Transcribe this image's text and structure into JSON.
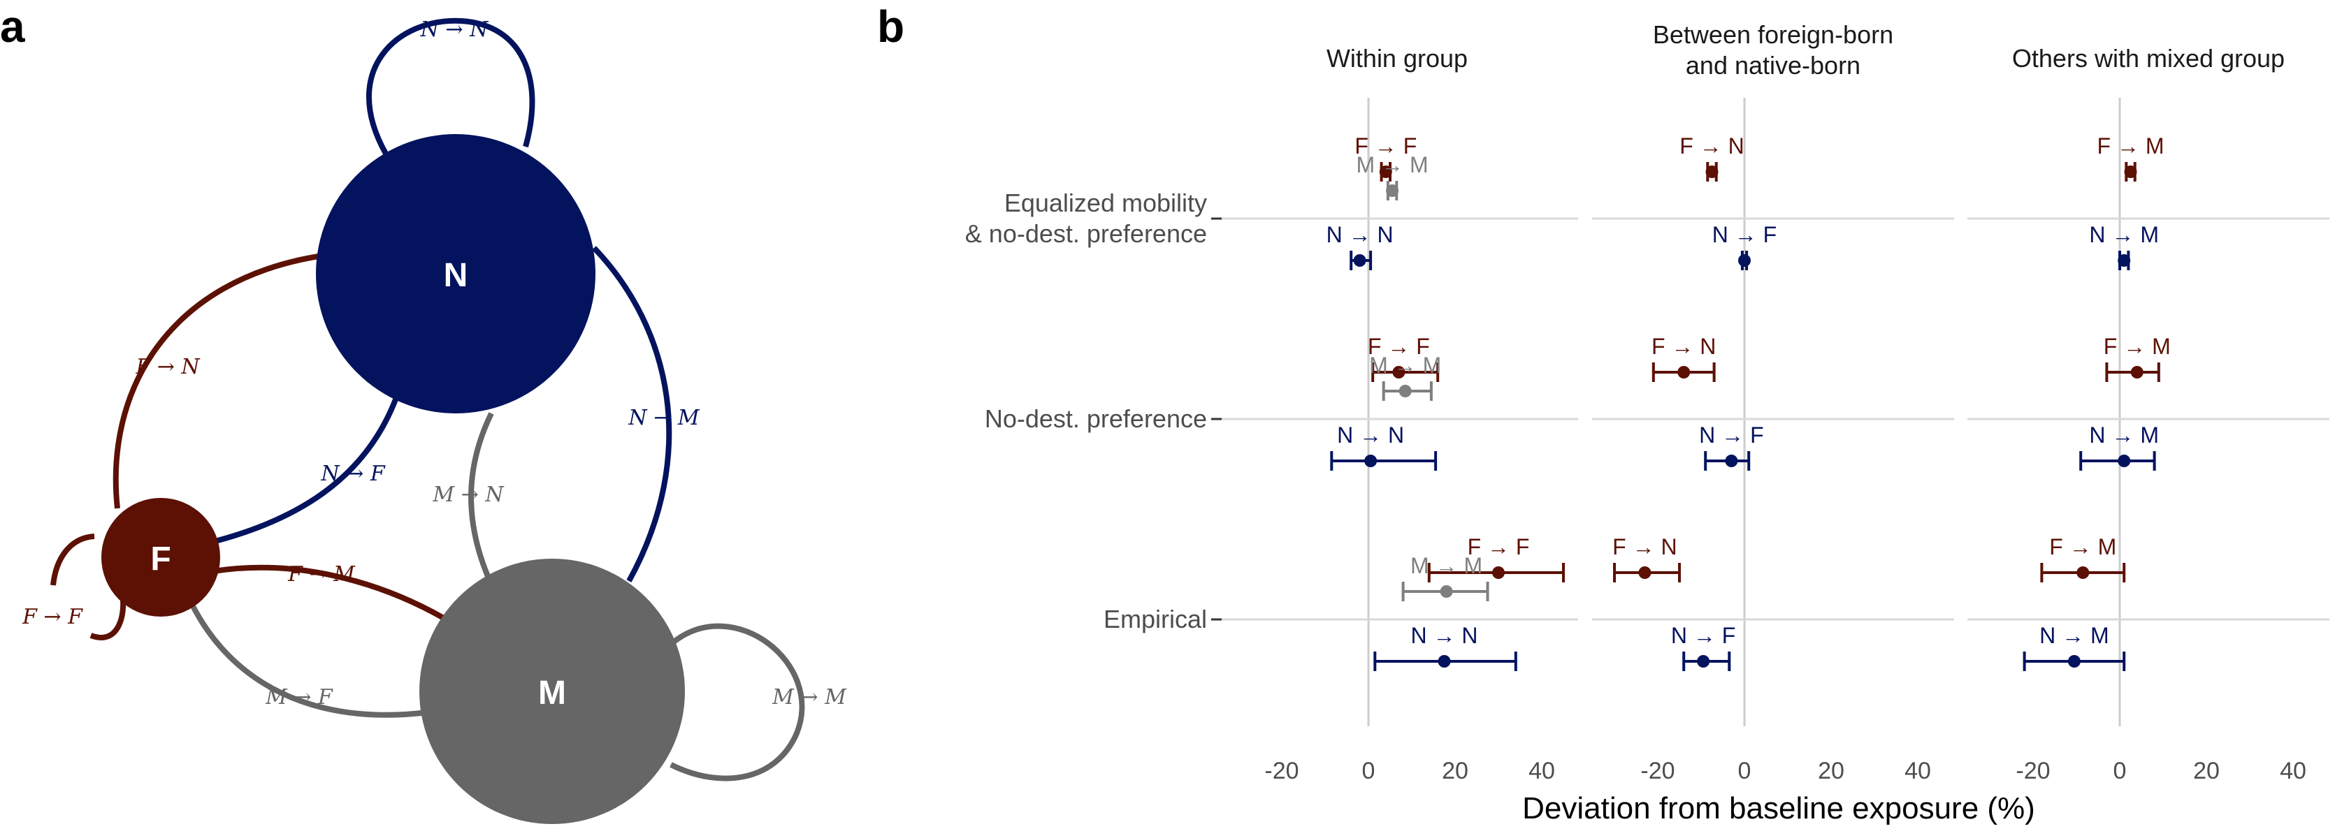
{
  "panel_a": {
    "letter": "a",
    "nodes": {
      "N": {
        "label": "N",
        "color": "#03135e"
      },
      "F": {
        "label": "F",
        "color": "#5c1104"
      },
      "M": {
        "label": "M",
        "color": "#666666"
      }
    },
    "edges": {
      "NN": "N → N",
      "FN": "F → N",
      "NF": "N → F",
      "NM": "N → M",
      "MN": "M → N",
      "FM": "F → M",
      "FF": "F → F",
      "MF": "M → F",
      "MM": "M → M"
    }
  },
  "panel_b": {
    "letter": "b",
    "x_axis_title": "Deviation from baseline exposure (%)"
  },
  "chart_data": {
    "type": "scatter",
    "subtype": "dot-with-horizontal-errorbars",
    "facets": [
      "Within group",
      "Between foreign-born\nand native-born",
      "Others with mixed group"
    ],
    "rows": [
      "Equalized mobility\n& no-dest. preference",
      "No-dest. preference",
      "Empirical"
    ],
    "x_ticks": [
      -20,
      0,
      20,
      40
    ],
    "xlim": [
      -24,
      48
    ],
    "xlabel": "Deviation from baseline exposure (%)",
    "grid": "vertical line at 0; horizontal line at each row",
    "colors": {
      "F": "#5c1104",
      "M": "#7f7f7f",
      "N": "#03135e"
    },
    "points": [
      {
        "facet": 0,
        "row": 0,
        "label": "F → F",
        "group": "F",
        "x": 4,
        "lo": 3,
        "hi": 5
      },
      {
        "facet": 0,
        "row": 0,
        "label": "M → M",
        "group": "M",
        "x": 5.5,
        "lo": 4.5,
        "hi": 6.5
      },
      {
        "facet": 0,
        "row": 0,
        "label": "N → N",
        "group": "N",
        "x": -2,
        "lo": -4,
        "hi": 0.5
      },
      {
        "facet": 0,
        "row": 1,
        "label": "F → F",
        "group": "F",
        "x": 7,
        "lo": 1,
        "hi": 16
      },
      {
        "facet": 0,
        "row": 1,
        "label": "M → M",
        "group": "M",
        "x": 8.5,
        "lo": 3.5,
        "hi": 14.5
      },
      {
        "facet": 0,
        "row": 1,
        "label": "N → N",
        "group": "N",
        "x": 0.5,
        "lo": -8.5,
        "hi": 15.5
      },
      {
        "facet": 0,
        "row": 2,
        "label": "F → F",
        "group": "F",
        "x": 30,
        "lo": 14,
        "hi": 45
      },
      {
        "facet": 0,
        "row": 2,
        "label": "M → M",
        "group": "M",
        "x": 18,
        "lo": 8,
        "hi": 27.5
      },
      {
        "facet": 0,
        "row": 2,
        "label": "N → N",
        "group": "N",
        "x": 17.5,
        "lo": 1.5,
        "hi": 34
      },
      {
        "facet": 1,
        "row": 0,
        "label": "F → N",
        "group": "F",
        "x": -7.5,
        "lo": -8.5,
        "hi": -6.5
      },
      {
        "facet": 1,
        "row": 0,
        "label": "N → F",
        "group": "N",
        "x": 0,
        "lo": -0.5,
        "hi": 0.5
      },
      {
        "facet": 1,
        "row": 1,
        "label": "F → N",
        "group": "F",
        "x": -14,
        "lo": -21,
        "hi": -7
      },
      {
        "facet": 1,
        "row": 1,
        "label": "N → F",
        "group": "N",
        "x": -3,
        "lo": -9,
        "hi": 1
      },
      {
        "facet": 1,
        "row": 2,
        "label": "F → N",
        "group": "F",
        "x": -23,
        "lo": -30,
        "hi": -15
      },
      {
        "facet": 1,
        "row": 2,
        "label": "N → F",
        "group": "N",
        "x": -9.5,
        "lo": -14,
        "hi": -3.5
      },
      {
        "facet": 2,
        "row": 0,
        "label": "F → M",
        "group": "F",
        "x": 2.5,
        "lo": 1.5,
        "hi": 3.5
      },
      {
        "facet": 2,
        "row": 0,
        "label": "N → M",
        "group": "N",
        "x": 1,
        "lo": 0,
        "hi": 2
      },
      {
        "facet": 2,
        "row": 1,
        "label": "F → M",
        "group": "F",
        "x": 4,
        "lo": -3,
        "hi": 9
      },
      {
        "facet": 2,
        "row": 1,
        "label": "N → M",
        "group": "N",
        "x": 1,
        "lo": -9,
        "hi": 8
      },
      {
        "facet": 2,
        "row": 2,
        "label": "F → M",
        "group": "F",
        "x": -8.5,
        "lo": -18,
        "hi": 1
      },
      {
        "facet": 2,
        "row": 2,
        "label": "N → M",
        "group": "N",
        "x": -10.5,
        "lo": -22,
        "hi": 1
      }
    ]
  }
}
